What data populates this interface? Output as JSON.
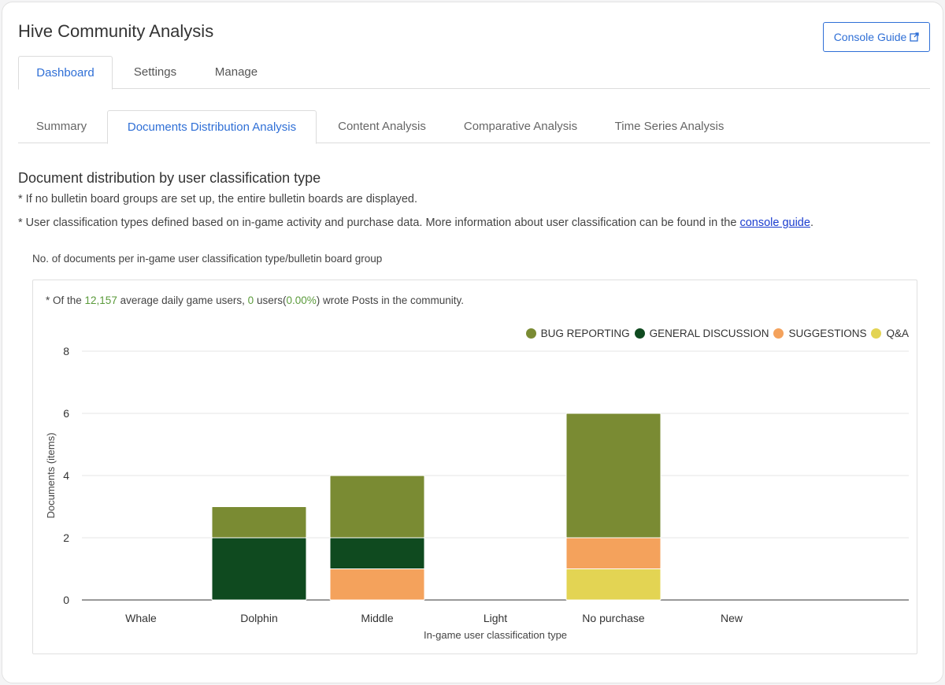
{
  "app": {
    "title": "Hive Community Analysis",
    "console_guide_label": "Console Guide"
  },
  "top_tabs": [
    {
      "label": "Dashboard",
      "active": true
    },
    {
      "label": "Settings",
      "active": false
    },
    {
      "label": "Manage",
      "active": false
    }
  ],
  "sub_tabs": [
    {
      "label": "Summary",
      "active": false
    },
    {
      "label": "Documents Distribution Analysis",
      "active": true
    },
    {
      "label": "Content Analysis",
      "active": false
    },
    {
      "label": "Comparative Analysis",
      "active": false
    },
    {
      "label": "Time Series Analysis",
      "active": false
    }
  ],
  "section": {
    "title": "Document distribution by user classification type",
    "note1": "* If no bulletin board groups are set up, the entire bulletin boards are displayed.",
    "note2_prefix": "* User classification types defined based on in-game activity and purchase data. More information about user classification can be found in the ",
    "note2_link": "console guide",
    "note2_suffix": "."
  },
  "chart_caption": "No. of documents per in-game user classification type/bulletin board group",
  "users_note": {
    "prefix": "* Of the ",
    "avg_users": "12,157",
    "middle": " average daily game users, ",
    "writers": "0",
    "middle2": " users(",
    "percent": "0.00%",
    "suffix": ") wrote Posts in the community."
  },
  "colors": {
    "accent": "#2f6fd6",
    "bug": "#7a8b33",
    "general": "#0f4a1f",
    "suggestions": "#f4a25c",
    "qa": "#e3d453"
  },
  "chart_data": {
    "type": "bar",
    "stacked": true,
    "categories": [
      "Whale",
      "Dolphin",
      "Middle",
      "Light",
      "No purchase",
      "New"
    ],
    "series": [
      {
        "name": "Q&A",
        "color": "#e3d453",
        "values": [
          0,
          0,
          0,
          0,
          1,
          0
        ]
      },
      {
        "name": "SUGGESTIONS",
        "color": "#f4a25c",
        "values": [
          0,
          0,
          1,
          0,
          1,
          0
        ]
      },
      {
        "name": "GENERAL DISCUSSION",
        "color": "#0f4a1f",
        "values": [
          0,
          2,
          1,
          0,
          0,
          0
        ]
      },
      {
        "name": "BUG REPORTING",
        "color": "#7a8b33",
        "values": [
          0,
          1,
          2,
          0,
          4,
          0
        ]
      }
    ],
    "legend_order": [
      "BUG REPORTING",
      "GENERAL DISCUSSION",
      "SUGGESTIONS",
      "Q&A"
    ],
    "xlabel": "In-game user classification type",
    "ylabel": "Documents (items)",
    "ylim": [
      0,
      8
    ],
    "yticks": [
      0,
      2,
      4,
      6,
      8
    ],
    "grid": true,
    "legend_position": "top-right"
  }
}
